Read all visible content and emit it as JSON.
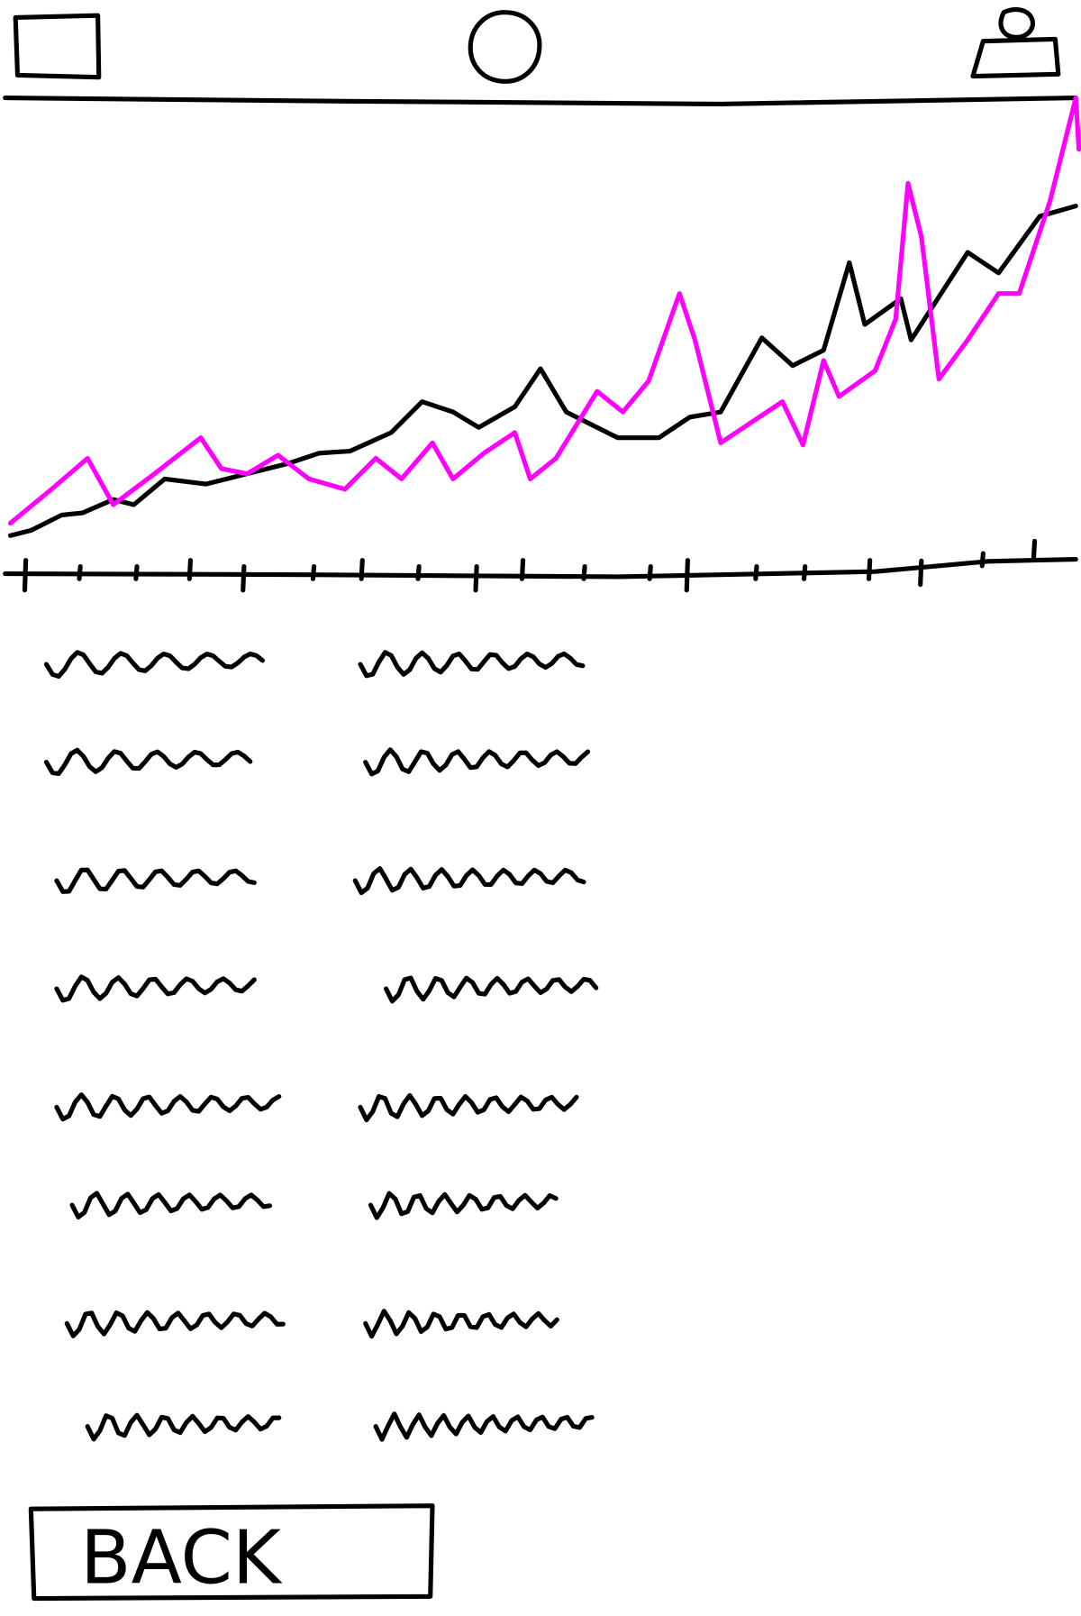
{
  "button": {
    "label": "BACK"
  }
}
